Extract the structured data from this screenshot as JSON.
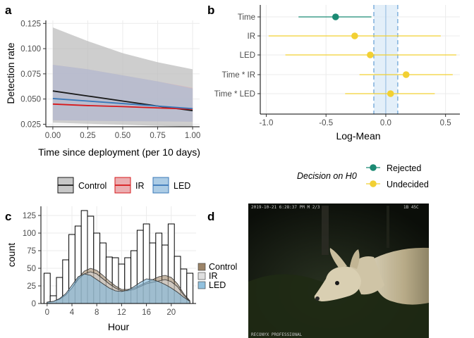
{
  "panels": {
    "a": "a",
    "b": "b",
    "c": "c",
    "d": "d"
  },
  "colors": {
    "Control": "#1a1a1a",
    "IR": "#d7191c",
    "LED": "#3a78b8",
    "Control_fill": "#bdbdbd",
    "IR_fill": "#e8a0a3",
    "LED_fill": "#9ec3e0",
    "Rejected": "#1b8a73",
    "Undecided": "#f2d033",
    "rope_fill": "#d7e8f6",
    "rope_line": "#7fb0dc"
  },
  "chart_data": [
    {
      "type": "line",
      "panel": "a",
      "xlabel": "Time since deployment (per 10 days)",
      "ylabel": "Detection rate",
      "xlim": [
        -0.05,
        1.05
      ],
      "ylim": [
        0.0225,
        0.128
      ],
      "xticks": [
        0.0,
        0.25,
        0.5,
        0.75,
        1.0
      ],
      "xtick_labels": [
        "0.00",
        "0.25",
        "0.50",
        "0.75",
        "1.00"
      ],
      "yticks": [
        0.025,
        0.05,
        0.075,
        0.1,
        0.125
      ],
      "ytick_labels": [
        "0.025",
        "0.050",
        "0.075",
        "0.100",
        "0.125"
      ],
      "grid": true,
      "x": [
        0.0,
        0.25,
        0.5,
        0.75,
        1.0
      ],
      "series": [
        {
          "name": "Control",
          "values": [
            0.058,
            0.053,
            0.048,
            0.043,
            0.0385
          ],
          "lower": [
            0.0265,
            0.0255,
            0.0245,
            0.0235,
            0.0225
          ],
          "upper": [
            0.121,
            0.1075,
            0.0955,
            0.0865,
            0.0795
          ]
        },
        {
          "name": "IR",
          "values": [
            0.045,
            0.0435,
            0.0425,
            0.0412,
            0.04
          ],
          "lower": [
            0.029,
            0.0285,
            0.028,
            0.0278,
            0.0275
          ],
          "upper": [
            0.084,
            0.0795,
            0.0735,
            0.0675,
            0.061
          ]
        },
        {
          "name": "LED",
          "values": [
            0.0505,
            0.048,
            0.0455,
            0.043,
            0.0405
          ],
          "lower": [
            0.029,
            0.0285,
            0.028,
            0.0278,
            0.0275
          ],
          "upper": [
            0.084,
            0.0795,
            0.0735,
            0.0675,
            0.0605
          ]
        }
      ],
      "legend_placement": "bottom",
      "legend": [
        "Control",
        "IR",
        "LED"
      ]
    },
    {
      "type": "scatter",
      "panel": "b",
      "xlabel": "Log-Mean",
      "ylabel": "",
      "xlim": [
        -1.05,
        0.62
      ],
      "xticks": [
        -1.0,
        -0.5,
        0.0,
        0.5
      ],
      "xtick_labels": [
        "-1.0",
        "-0.5",
        "0.0",
        "0.5"
      ],
      "categories": [
        "Time",
        "IR",
        "LED",
        "Time * IR",
        "Time * LED"
      ],
      "estimates": [
        -0.42,
        -0.26,
        -0.13,
        0.17,
        0.04
      ],
      "lower": [
        -0.73,
        -0.98,
        -0.84,
        -0.22,
        -0.34
      ],
      "upper": [
        -0.12,
        0.46,
        0.59,
        0.56,
        0.41
      ],
      "decision": [
        "Rejected",
        "Undecided",
        "Undecided",
        "Undecided",
        "Undecided"
      ],
      "rope": [
        -0.1,
        0.1
      ],
      "grid": true,
      "legend_title": "Decision on H0",
      "legend": [
        "Rejected",
        "Undecided"
      ],
      "legend_placement": "bottom"
    },
    {
      "type": "bar",
      "panel": "c",
      "xlabel": "Hour",
      "ylabel": "count",
      "xlim": [
        -1,
        24
      ],
      "ylim": [
        0,
        138
      ],
      "xticks": [
        0,
        4,
        8,
        12,
        16,
        20
      ],
      "xtick_labels": [
        "0",
        "4",
        "8",
        "12",
        "16",
        "20"
      ],
      "yticks": [
        0,
        25,
        50,
        75,
        100,
        125
      ],
      "ytick_labels": [
        "0",
        "25",
        "50",
        "75",
        "100",
        "125"
      ],
      "grid": true,
      "hours": [
        0,
        1,
        2,
        3,
        4,
        5,
        6,
        7,
        8,
        9,
        10,
        11,
        12,
        13,
        14,
        15,
        16,
        17,
        18,
        19,
        20,
        21,
        22,
        23
      ],
      "counts": [
        43,
        11,
        37,
        62,
        98,
        110,
        132,
        124,
        100,
        86,
        66,
        65,
        56,
        65,
        75,
        104,
        113,
        86,
        100,
        83,
        113,
        67,
        49,
        43
      ],
      "density": {
        "x": [
          0,
          1,
          2,
          3,
          4,
          5,
          6,
          7,
          8,
          9,
          10,
          11,
          12,
          13,
          14,
          15,
          16,
          17,
          18,
          19,
          20,
          21,
          22,
          23
        ],
        "series": [
          {
            "name": "Control",
            "values": [
              2,
              3,
              6,
              12,
              22,
              36,
              46,
              50,
              47,
              40,
              32,
              25,
              20,
              20,
              22,
              26,
              30,
              34,
              38,
              40,
              37,
              28,
              14,
              4
            ]
          },
          {
            "name": "IR",
            "values": [
              2,
              3,
              6,
              12,
              22,
              34,
              42,
              45,
              42,
              35,
              28,
              22,
              18,
              18,
              20,
              24,
              28,
              30,
              32,
              34,
              31,
              24,
              12,
              3
            ]
          },
          {
            "name": "LED",
            "values": [
              2,
              3,
              7,
              14,
              26,
              38,
              42,
              40,
              34,
              28,
              22,
              18,
              17,
              19,
              24,
              30,
              35,
              34,
              31,
              27,
              22,
              16,
              9,
              3
            ]
          }
        ]
      },
      "legend": [
        "Control",
        "IR",
        "LED"
      ],
      "legend_placement": "right"
    }
  ],
  "photo": {
    "timestamp": "2019-10-21 6:28:37 PM   M 2/3",
    "counter": "1B   45C",
    "brand": "RECONYX PROFESSIONAL"
  }
}
